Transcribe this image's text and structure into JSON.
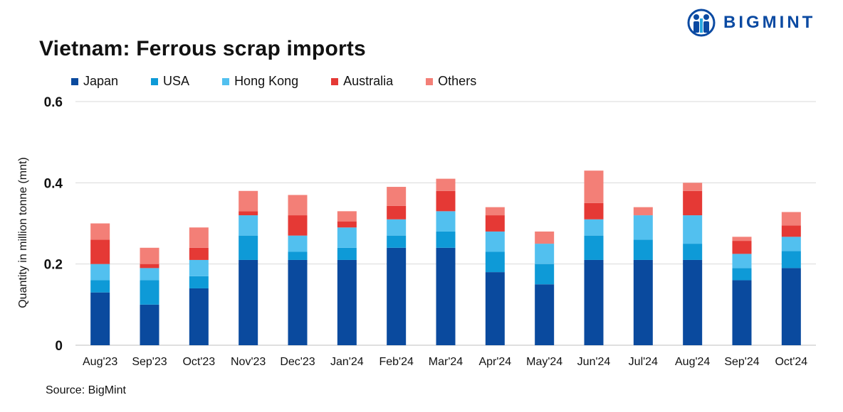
{
  "brand": {
    "name": "BIGMINT",
    "color": "#0b4aa2"
  },
  "title": "Vietnam: Ferrous scrap imports",
  "source": "Source: BigMint",
  "chart_data": {
    "type": "bar",
    "stacked": true,
    "title": "Vietnam: Ferrous scrap imports",
    "xlabel": "",
    "ylabel": "Quantity in million tonne (mnt)",
    "ylim": [
      0,
      0.6
    ],
    "yticks": [
      0,
      0.2,
      0.4,
      0.6
    ],
    "ytick_labels": [
      "0",
      "0.2",
      "0.4",
      "0.6"
    ],
    "grid": true,
    "legend_position": "top-left",
    "categories": [
      "Aug'23",
      "Sep'23",
      "Oct'23",
      "Nov'23",
      "Dec'23",
      "Jan'24",
      "Feb'24",
      "Mar'24",
      "Apr'24",
      "May'24",
      "Jun'24",
      "Jul'24",
      "Aug'24",
      "Sep'24",
      "Oct'24"
    ],
    "series": [
      {
        "name": "Japan",
        "color": "#0a4a9e",
        "values": [
          0.13,
          0.1,
          0.14,
          0.21,
          0.21,
          0.21,
          0.24,
          0.24,
          0.18,
          0.15,
          0.21,
          0.21,
          0.21,
          0.16,
          0.19
        ]
      },
      {
        "name": "USA",
        "color": "#0e9ad7",
        "values": [
          0.03,
          0.06,
          0.03,
          0.06,
          0.02,
          0.03,
          0.03,
          0.04,
          0.05,
          0.05,
          0.06,
          0.05,
          0.04,
          0.03,
          0.042
        ]
      },
      {
        "name": "Hong Kong",
        "color": "#52c0ef",
        "values": [
          0.04,
          0.03,
          0.04,
          0.05,
          0.04,
          0.05,
          0.04,
          0.05,
          0.05,
          0.05,
          0.04,
          0.06,
          0.07,
          0.035,
          0.035
        ]
      },
      {
        "name": "Australia",
        "color": "#e53935",
        "values": [
          0.06,
          0.01,
          0.03,
          0.01,
          0.05,
          0.015,
          0.033,
          0.05,
          0.04,
          0.0,
          0.04,
          0.0,
          0.06,
          0.032,
          0.028
        ]
      },
      {
        "name": "Others",
        "color": "#f37f77",
        "values": [
          0.04,
          0.04,
          0.05,
          0.05,
          0.05,
          0.025,
          0.047,
          0.03,
          0.02,
          0.03,
          0.08,
          0.02,
          0.02,
          0.01,
          0.033
        ]
      }
    ]
  }
}
